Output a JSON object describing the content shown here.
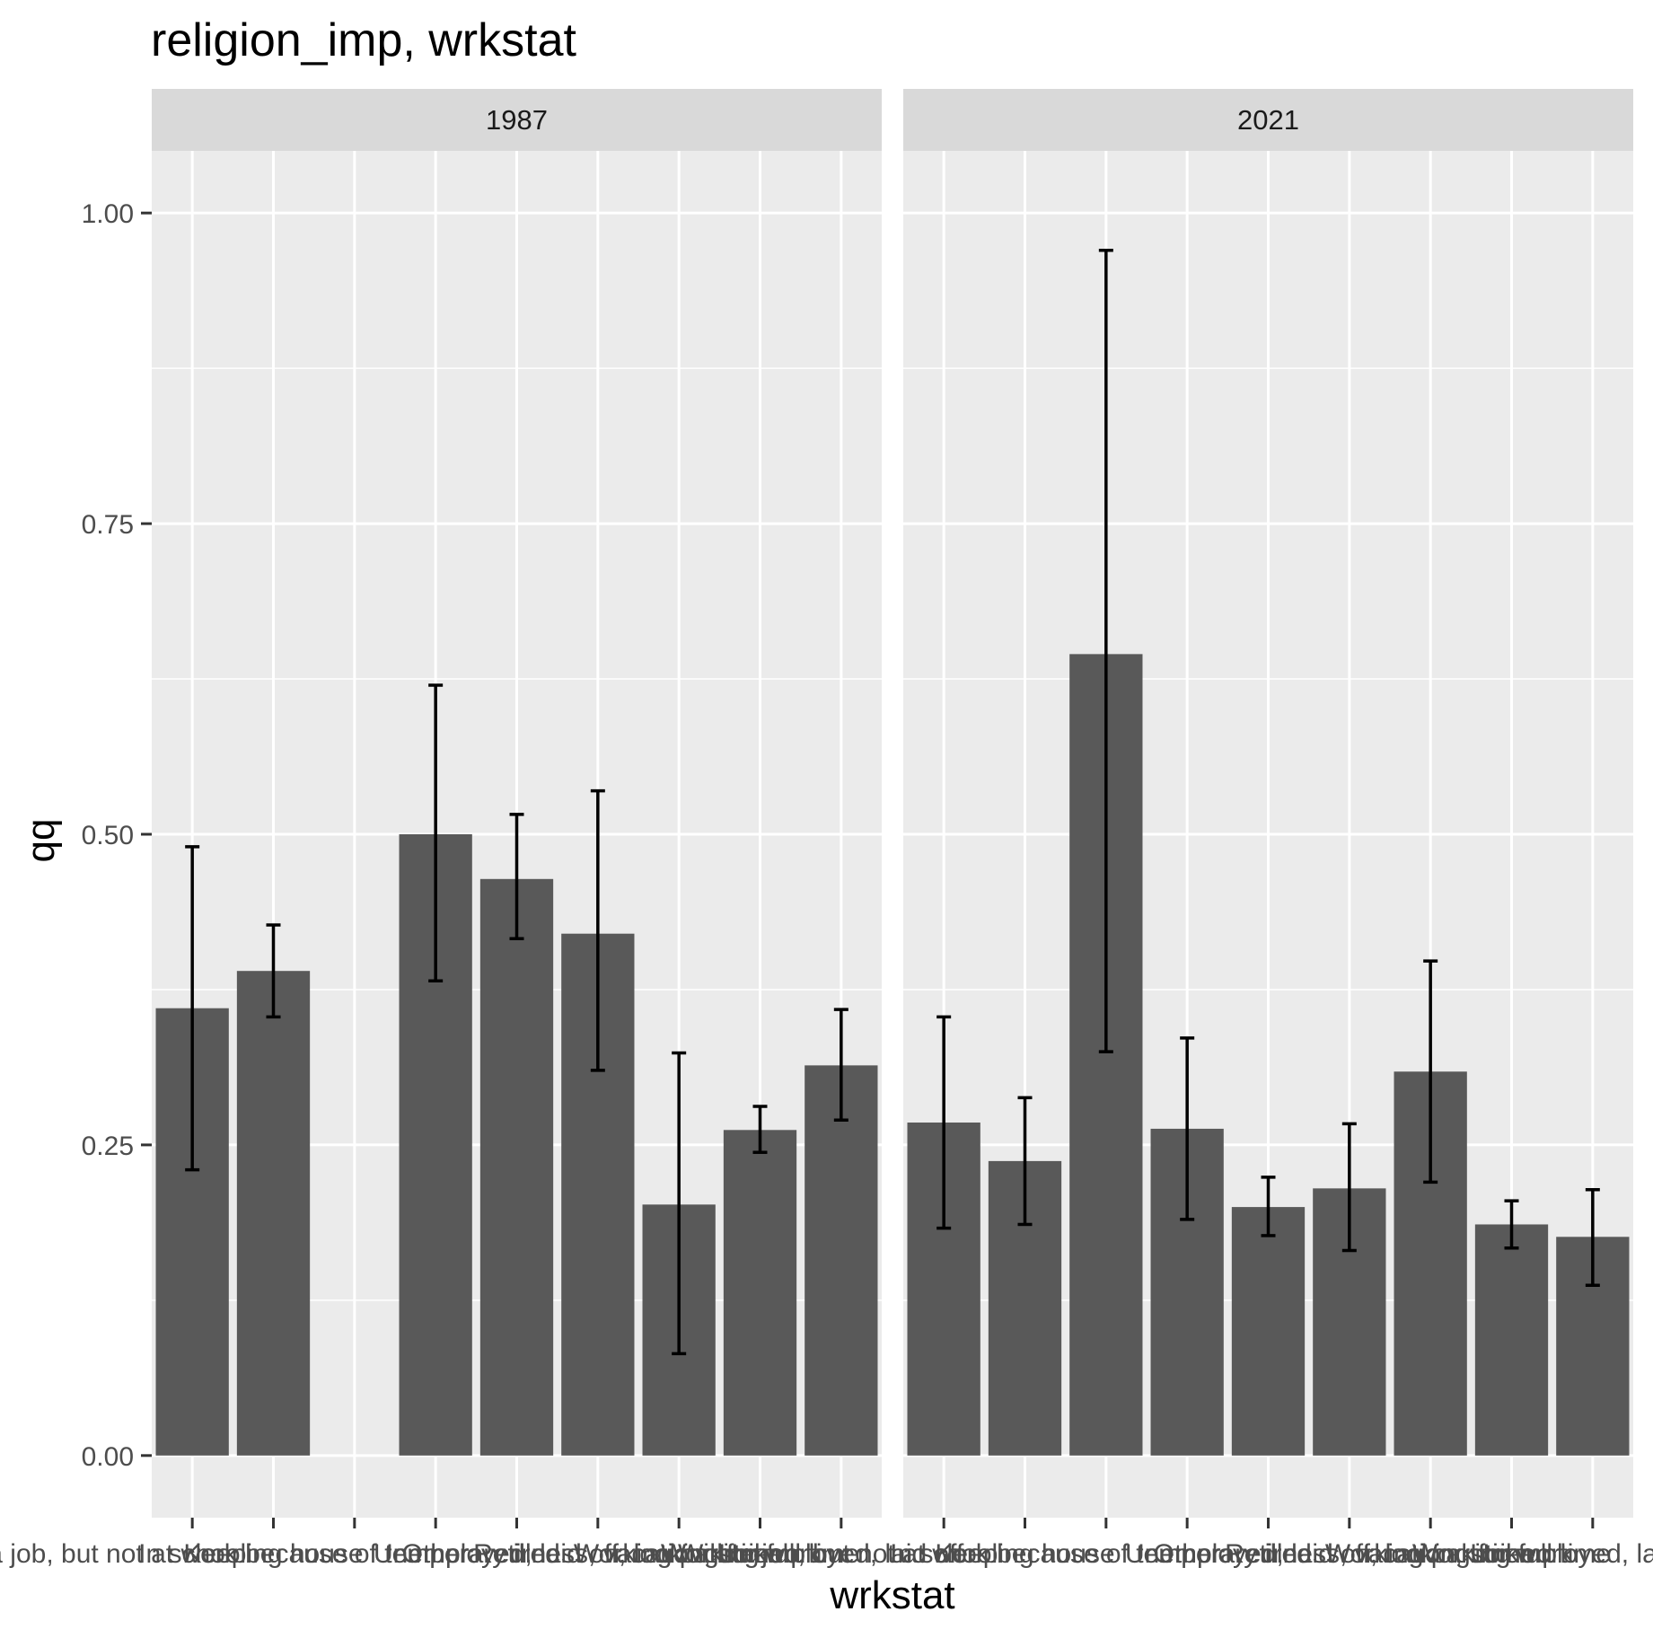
{
  "chart_data": {
    "type": "bar",
    "title": "religion_imp, wrkstat",
    "xlabel": "wrkstat",
    "ylabel": "qq",
    "ylim": [
      -0.05,
      1.05
    ],
    "yticks": [
      0.0,
      0.25,
      0.5,
      0.75,
      1.0
    ],
    "ytick_labels": [
      "0.00",
      "0.25",
      "0.50",
      "0.75",
      "1.00"
    ],
    "grid": true,
    "bar_color": "#595959",
    "panel_bg": "#ebebeb",
    "strip_bg": "#d9d9d9",
    "categories": [
      "In school",
      "Keeping house",
      "With a job, but not at work because of temporary illness, vacation, strike",
      "Other",
      "Retired",
      "Unemployed, laid off, looking for work",
      "Working part time",
      "Working full time",
      "Unemployed, laid off"
    ],
    "panels": [
      {
        "label": "1987",
        "values": [
          0.36,
          0.39,
          null,
          0.5,
          0.464,
          0.42,
          0.202,
          0.262,
          0.314
        ],
        "lower": [
          0.23,
          0.353,
          null,
          0.382,
          0.416,
          0.31,
          0.082,
          0.244,
          0.27
        ],
        "upper": [
          0.49,
          0.427,
          null,
          0.62,
          0.516,
          0.535,
          0.324,
          0.281,
          0.359
        ]
      },
      {
        "label": "2021",
        "values": [
          0.268,
          0.237,
          0.645,
          0.263,
          0.2,
          0.215,
          0.309,
          0.186,
          0.176
        ],
        "lower": [
          0.183,
          0.186,
          0.325,
          0.19,
          0.177,
          0.165,
          0.22,
          0.167,
          0.137
        ],
        "upper": [
          0.353,
          0.288,
          0.97,
          0.336,
          0.224,
          0.267,
          0.398,
          0.205,
          0.214
        ]
      }
    ]
  }
}
